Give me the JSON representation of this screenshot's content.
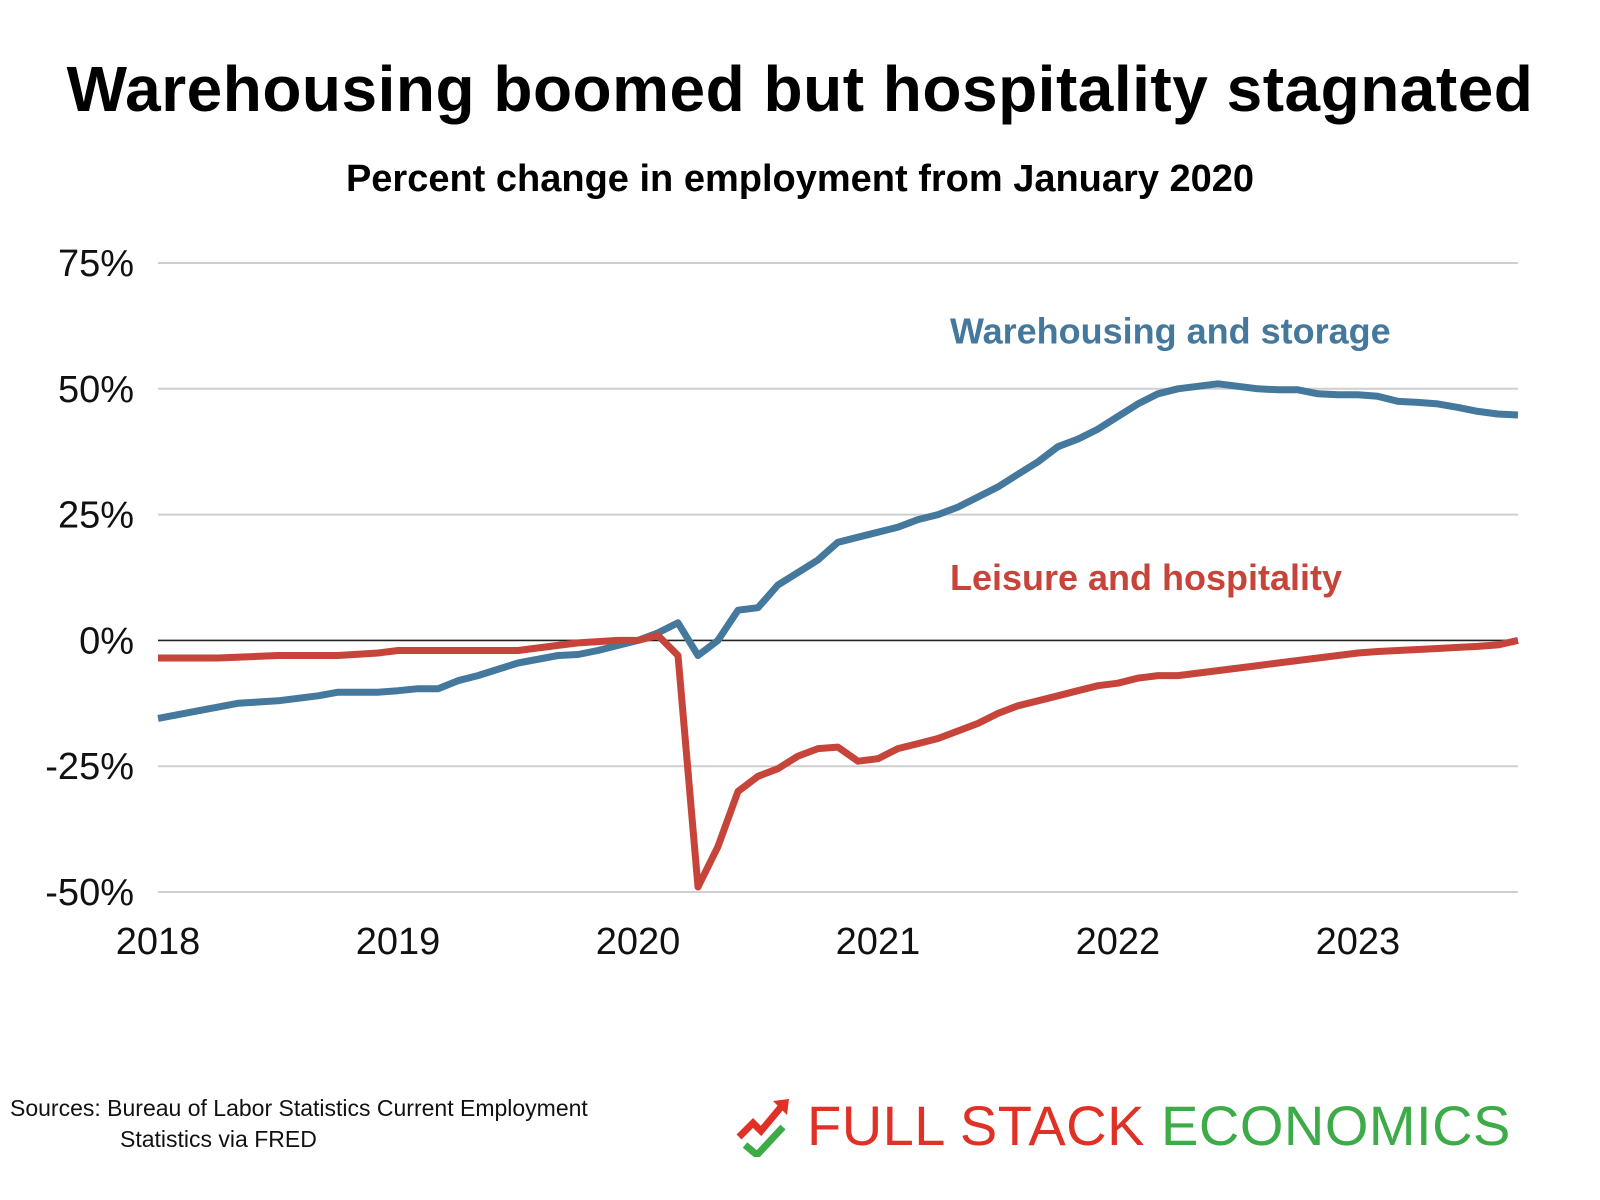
{
  "title": "Warehousing boomed but hospitality stagnated",
  "subtitle": "Percent change in employment from January 2020",
  "sources": {
    "line1": "Sources: Bureau of Labor Statistics Current Employment",
    "line2": "Statistics via FRED"
  },
  "brand": {
    "part1": "FULL STACK",
    "part2": "ECONOMICS",
    "icon": "chart-trend-check-icon",
    "color_red": "#e03127",
    "color_green": "#3cab48"
  },
  "chart_data": {
    "type": "line",
    "title": "Warehousing boomed but hospitality stagnated",
    "subtitle": "Percent change in employment from January 2020",
    "xlabel": "",
    "ylabel": "",
    "xlim": [
      2018.0,
      2023.667
    ],
    "ylim": [
      -50,
      75
    ],
    "x_ticks": [
      {
        "value": 2018,
        "label": "2018"
      },
      {
        "value": 2019,
        "label": "2019"
      },
      {
        "value": 2020,
        "label": "2020"
      },
      {
        "value": 2021,
        "label": "2021"
      },
      {
        "value": 2022,
        "label": "2022"
      },
      {
        "value": 2023,
        "label": "2023"
      }
    ],
    "y_ticks": [
      {
        "value": 75,
        "label": "75%"
      },
      {
        "value": 50,
        "label": "50%"
      },
      {
        "value": 25,
        "label": "25%"
      },
      {
        "value": 0,
        "label": "0%"
      },
      {
        "value": -25,
        "label": "-25%"
      },
      {
        "value": -50,
        "label": "-50%"
      }
    ],
    "grid": true,
    "zero_line": true,
    "series": [
      {
        "name": "Warehousing and storage",
        "color": "#44789c",
        "points": [
          [
            2018.0,
            -15.5
          ],
          [
            2018.167,
            -14.0
          ],
          [
            2018.333,
            -12.5
          ],
          [
            2018.5,
            -12.0
          ],
          [
            2018.667,
            -11.0
          ],
          [
            2018.75,
            -10.3
          ],
          [
            2018.917,
            -10.3
          ],
          [
            2019.0,
            -10.0
          ],
          [
            2019.083,
            -9.6
          ],
          [
            2019.167,
            -9.6
          ],
          [
            2019.25,
            -8.0
          ],
          [
            2019.333,
            -7.0
          ],
          [
            2019.5,
            -4.5
          ],
          [
            2019.667,
            -3.0
          ],
          [
            2019.75,
            -2.8
          ],
          [
            2019.833,
            -2.0
          ],
          [
            2019.917,
            -1.0
          ],
          [
            2020.0,
            0.0
          ],
          [
            2020.083,
            1.5
          ],
          [
            2020.167,
            3.5
          ],
          [
            2020.25,
            -3.0
          ],
          [
            2020.333,
            0.0
          ],
          [
            2020.417,
            6.0
          ],
          [
            2020.5,
            6.5
          ],
          [
            2020.583,
            11.0
          ],
          [
            2020.667,
            13.5
          ],
          [
            2020.75,
            16.0
          ],
          [
            2020.833,
            19.5
          ],
          [
            2020.917,
            20.5
          ],
          [
            2021.0,
            21.5
          ],
          [
            2021.083,
            22.5
          ],
          [
            2021.167,
            24.0
          ],
          [
            2021.25,
            25.0
          ],
          [
            2021.333,
            26.5
          ],
          [
            2021.417,
            28.5
          ],
          [
            2021.5,
            30.5
          ],
          [
            2021.583,
            33.0
          ],
          [
            2021.667,
            35.5
          ],
          [
            2021.75,
            38.5
          ],
          [
            2021.833,
            40.0
          ],
          [
            2021.917,
            42.0
          ],
          [
            2022.0,
            44.5
          ],
          [
            2022.083,
            47.0
          ],
          [
            2022.167,
            49.0
          ],
          [
            2022.25,
            50.0
          ],
          [
            2022.333,
            50.5
          ],
          [
            2022.417,
            51.0
          ],
          [
            2022.5,
            50.5
          ],
          [
            2022.583,
            50.0
          ],
          [
            2022.667,
            49.8
          ],
          [
            2022.75,
            49.8
          ],
          [
            2022.833,
            49.0
          ],
          [
            2022.917,
            48.8
          ],
          [
            2023.0,
            48.8
          ],
          [
            2023.083,
            48.5
          ],
          [
            2023.167,
            47.5
          ],
          [
            2023.25,
            47.3
          ],
          [
            2023.333,
            47.0
          ],
          [
            2023.417,
            46.3
          ],
          [
            2023.5,
            45.5
          ],
          [
            2023.583,
            45.0
          ],
          [
            2023.667,
            44.8
          ]
        ]
      },
      {
        "name": "Leisure and hospitality",
        "color": "#c6443a",
        "points": [
          [
            2018.0,
            -3.5
          ],
          [
            2018.25,
            -3.5
          ],
          [
            2018.5,
            -3.0
          ],
          [
            2018.75,
            -3.0
          ],
          [
            2018.917,
            -2.5
          ],
          [
            2019.0,
            -2.0
          ],
          [
            2019.25,
            -2.0
          ],
          [
            2019.5,
            -2.0
          ],
          [
            2019.667,
            -1.0
          ],
          [
            2019.75,
            -0.5
          ],
          [
            2019.917,
            0.0
          ],
          [
            2020.0,
            0.0
          ],
          [
            2020.083,
            1.0
          ],
          [
            2020.167,
            -3.0
          ],
          [
            2020.25,
            -49.0
          ],
          [
            2020.333,
            -41.0
          ],
          [
            2020.417,
            -30.0
          ],
          [
            2020.5,
            -27.0
          ],
          [
            2020.583,
            -25.5
          ],
          [
            2020.667,
            -23.0
          ],
          [
            2020.75,
            -21.5
          ],
          [
            2020.833,
            -21.2
          ],
          [
            2020.917,
            -24.0
          ],
          [
            2021.0,
            -23.5
          ],
          [
            2021.083,
            -21.5
          ],
          [
            2021.167,
            -20.5
          ],
          [
            2021.25,
            -19.5
          ],
          [
            2021.333,
            -18.0
          ],
          [
            2021.417,
            -16.5
          ],
          [
            2021.5,
            -14.5
          ],
          [
            2021.583,
            -13.0
          ],
          [
            2021.667,
            -12.0
          ],
          [
            2021.75,
            -11.0
          ],
          [
            2021.833,
            -10.0
          ],
          [
            2021.917,
            -9.0
          ],
          [
            2022.0,
            -8.5
          ],
          [
            2022.083,
            -7.5
          ],
          [
            2022.167,
            -7.0
          ],
          [
            2022.25,
            -7.0
          ],
          [
            2022.333,
            -6.5
          ],
          [
            2022.417,
            -6.0
          ],
          [
            2022.5,
            -5.5
          ],
          [
            2022.583,
            -5.0
          ],
          [
            2022.667,
            -4.5
          ],
          [
            2022.75,
            -4.0
          ],
          [
            2022.833,
            -3.5
          ],
          [
            2022.917,
            -3.0
          ],
          [
            2023.0,
            -2.5
          ],
          [
            2023.083,
            -2.2
          ],
          [
            2023.167,
            -2.0
          ],
          [
            2023.25,
            -1.8
          ],
          [
            2023.333,
            -1.6
          ],
          [
            2023.417,
            -1.4
          ],
          [
            2023.5,
            -1.2
          ],
          [
            2023.583,
            -0.9
          ],
          [
            2023.667,
            0.0
          ]
        ]
      }
    ],
    "annotations": [
      {
        "text": "Warehousing and storage",
        "color": "#44789c",
        "x": 2021.3,
        "y": 59
      },
      {
        "text": "Leisure and hospitality",
        "color": "#c6443a",
        "x": 2021.3,
        "y": 10
      }
    ]
  }
}
